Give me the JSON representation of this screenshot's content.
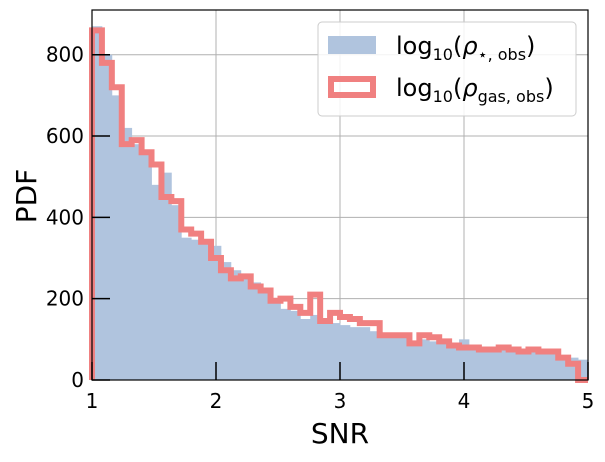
{
  "chart_data": {
    "type": "histogram",
    "xlabel": "SNR",
    "ylabel": "PDF",
    "xlim": [
      1,
      5
    ],
    "ylim": [
      0,
      910
    ],
    "xticks": [
      "1",
      "2",
      "3",
      "4",
      "5"
    ],
    "yticks": [
      "0",
      "200",
      "400",
      "600",
      "800"
    ],
    "xtick_values": [
      1,
      2,
      3,
      4,
      5
    ],
    "ytick_values": [
      0,
      200,
      400,
      600,
      800
    ],
    "grid": true,
    "legend_position": "top-right",
    "bin_edges": [
      1.0,
      1.08,
      1.16,
      1.24,
      1.32,
      1.4,
      1.48,
      1.56,
      1.64,
      1.72,
      1.8,
      1.88,
      1.96,
      2.04,
      2.12,
      2.2,
      2.28,
      2.36,
      2.44,
      2.52,
      2.6,
      2.68,
      2.76,
      2.84,
      2.92,
      3.0,
      3.08,
      3.16,
      3.24,
      3.32,
      3.4,
      3.48,
      3.56,
      3.64,
      3.72,
      3.8,
      3.88,
      3.96,
      4.04,
      4.12,
      4.2,
      4.28,
      4.36,
      4.44,
      4.52,
      4.6,
      4.68,
      4.76,
      4.84,
      4.92,
      5.0
    ],
    "series": [
      {
        "name": "log10(ρ⋆,obs)",
        "style": "filled",
        "color": "#b0c4de",
        "values": [
          870,
          800,
          700,
          620,
          580,
          560,
          480,
          510,
          430,
          350,
          345,
          340,
          330,
          290,
          270,
          260,
          240,
          220,
          190,
          175,
          170,
          150,
          160,
          140,
          140,
          135,
          130,
          130,
          120,
          115,
          110,
          105,
          95,
          100,
          95,
          95,
          90,
          100,
          85,
          80,
          80,
          75,
          70,
          70,
          75,
          70,
          65,
          60,
          55,
          50
        ]
      },
      {
        "name": "log10(ρgas,obs)",
        "style": "step",
        "color": "#f08080",
        "values": [
          860,
          780,
          720,
          580,
          590,
          560,
          530,
          450,
          440,
          370,
          360,
          340,
          300,
          270,
          250,
          255,
          230,
          220,
          195,
          200,
          180,
          165,
          210,
          145,
          165,
          155,
          150,
          140,
          140,
          110,
          110,
          110,
          90,
          110,
          105,
          95,
          85,
          80,
          80,
          75,
          75,
          80,
          75,
          70,
          75,
          70,
          70,
          55,
          40,
          0
        ]
      }
    ]
  }
}
